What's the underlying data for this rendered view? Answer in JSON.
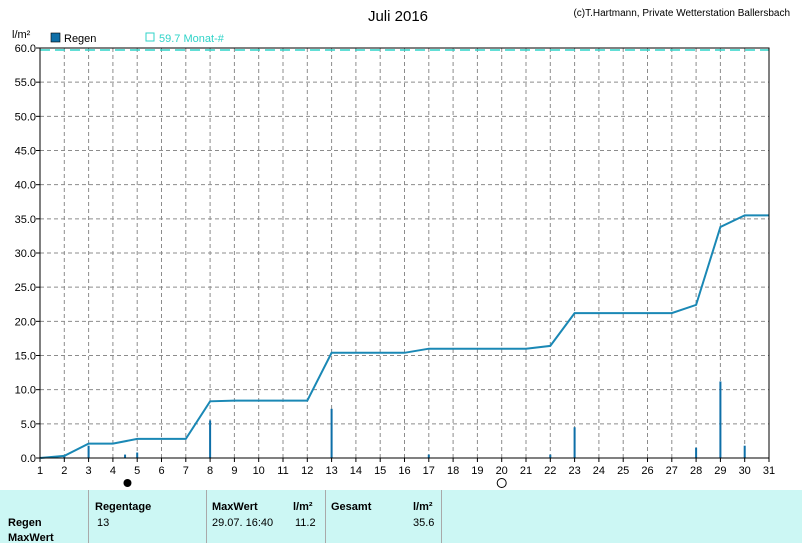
{
  "header": {
    "title": "Juli 2016",
    "copyright": "(c)T.Hartmann, Private Wetterstation Ballersbach",
    "unit": "l/m²"
  },
  "legend": {
    "bar_label": "Regen",
    "line_label": "59.7 Monat-#"
  },
  "colors": {
    "bar": "#0e6fa8",
    "line": "#1a88b5",
    "reference": "#2fd3c8",
    "panel": "#ccf7f4"
  },
  "chart_data": {
    "type": "bar",
    "title": "Juli 2016",
    "ylabel": "l/m²",
    "xlabel": "",
    "xlim": [
      1,
      31
    ],
    "ylim": [
      0,
      60
    ],
    "yticks": [
      "0.0",
      "5.0",
      "10.0",
      "15.0",
      "20.0",
      "25.0",
      "30.0",
      "35.0",
      "40.0",
      "45.0",
      "50.0",
      "55.0",
      "60.0"
    ],
    "xticks": [
      "1",
      "2",
      "3",
      "4",
      "5",
      "6",
      "7",
      "8",
      "9",
      "10",
      "11",
      "12",
      "13",
      "14",
      "15",
      "16",
      "17",
      "18",
      "19",
      "20",
      "21",
      "22",
      "23",
      "24",
      "25",
      "26",
      "27",
      "28",
      "29",
      "30",
      "31"
    ],
    "grid": true,
    "series": [
      {
        "name": "Regen",
        "type": "bar",
        "x": [
          2,
          3,
          4.5,
          5,
          8,
          13,
          17,
          22,
          23,
          28,
          29,
          30
        ],
        "values": [
          0.3,
          1.8,
          0.5,
          0.8,
          5.5,
          7.2,
          0.5,
          0.5,
          4.5,
          1.5,
          11.2,
          1.8
        ]
      },
      {
        "name": "59.7 Monat-#",
        "type": "line",
        "x": [
          1,
          2,
          3,
          4,
          5,
          6,
          7,
          8,
          9,
          10,
          11,
          12,
          13,
          14,
          15,
          16,
          17,
          18,
          19,
          20,
          21,
          22,
          23,
          24,
          25,
          26,
          27,
          28,
          29,
          30,
          31
        ],
        "values": [
          0.0,
          0.3,
          2.1,
          2.1,
          2.8,
          2.8,
          2.8,
          8.3,
          8.4,
          8.4,
          8.4,
          8.4,
          15.4,
          15.4,
          15.4,
          15.4,
          16.0,
          16.0,
          16.0,
          16.0,
          16.0,
          16.4,
          21.2,
          21.2,
          21.2,
          21.2,
          21.2,
          22.4,
          33.8,
          35.5,
          35.5
        ]
      },
      {
        "name": "59.7 Monat-#",
        "type": "reference",
        "values": [
          59.7
        ]
      }
    ],
    "markers": [
      {
        "symbol": "full-moon",
        "x": 4.6
      },
      {
        "symbol": "new-moon",
        "x": 20.0
      }
    ]
  },
  "stats": {
    "row_labels": [
      "Regen",
      "MaxWert"
    ],
    "regentage_header": "Regentage",
    "regentage_value": "13",
    "maxwert_header": "MaxWert",
    "maxwert_unit": "l/m²",
    "maxwert_date": "29.07.  16:40",
    "maxwert_value": "11.2",
    "gesamt_header": "Gesamt",
    "gesamt_unit": "l/m²",
    "gesamt_value": "35.6"
  }
}
